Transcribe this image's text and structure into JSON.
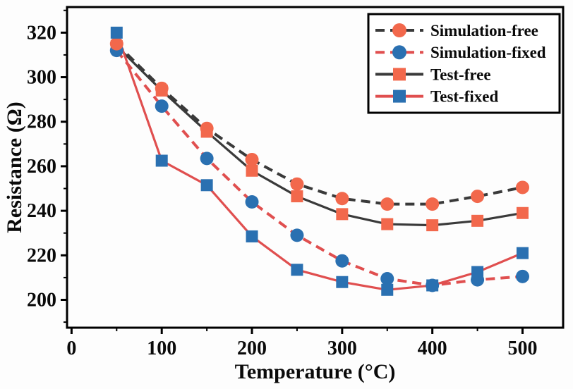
{
  "figure": {
    "background": "#fdfdfd",
    "frame_color": "#000000"
  },
  "chart_data": {
    "type": "line",
    "title": "",
    "xlabel": "Temperature (°C)",
    "ylabel": "Resistance (Ω)",
    "x": [
      50,
      100,
      150,
      200,
      250,
      300,
      350,
      400,
      450,
      500
    ],
    "xlim": [
      -5,
      545
    ],
    "ylim": [
      187.5,
      331.5
    ],
    "x_ticks": [
      0,
      100,
      200,
      300,
      400,
      500
    ],
    "x_minor_ticks": [
      50,
      150,
      250,
      350,
      450
    ],
    "y_ticks": [
      200,
      220,
      240,
      260,
      280,
      300,
      320
    ],
    "y_minor_ticks": [
      190,
      210,
      230,
      250,
      270,
      290,
      310,
      330
    ],
    "grid": false,
    "legend_position": "top-right",
    "marker_draw_order": [
      2,
      1,
      0,
      3
    ],
    "series": [
      {
        "name": "Simulation-free",
        "marker": "circle",
        "marker_color": "#f2684c",
        "line_color": "#3a3a3a",
        "line_style": "dashed",
        "values": [
          315,
          295,
          277,
          263,
          252,
          245.5,
          243,
          243,
          246.5,
          250.5
        ]
      },
      {
        "name": "Simulation-fixed",
        "marker": "circle",
        "marker_color": "#2a70b1",
        "line_color": "#e04f4f",
        "line_style": "dashed",
        "values": [
          312,
          287,
          263.5,
          244,
          229,
          217.5,
          209.5,
          206.5,
          209,
          210.5
        ]
      },
      {
        "name": "Test-free",
        "marker": "square",
        "marker_color": "#f2684c",
        "line_color": "#3a3a3a",
        "line_style": "solid",
        "values": [
          314,
          294,
          275.5,
          258,
          246.5,
          238.5,
          234,
          233.5,
          235.5,
          239
        ]
      },
      {
        "name": "Test-fixed",
        "marker": "square",
        "marker_color": "#2a70b1",
        "line_color": "#e04f4f",
        "line_style": "solid",
        "values": [
          320,
          262.5,
          251.5,
          228.5,
          213.5,
          208,
          204.5,
          206.5,
          212.5,
          221
        ]
      }
    ]
  }
}
